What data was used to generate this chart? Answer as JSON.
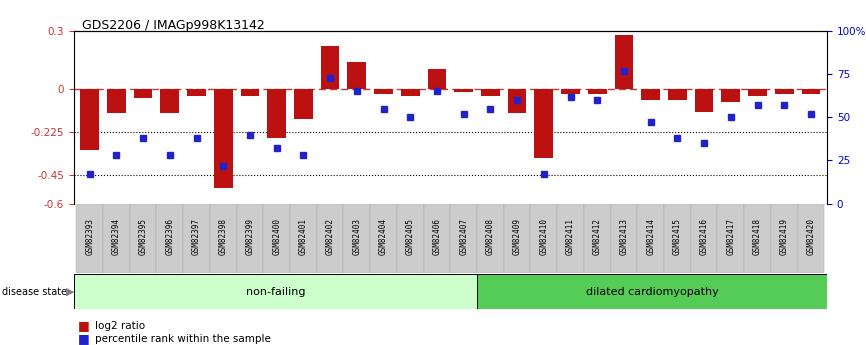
{
  "title": "GDS2206 / IMAGp998K13142",
  "samples": [
    "GSM82393",
    "GSM82394",
    "GSM82395",
    "GSM82396",
    "GSM82397",
    "GSM82398",
    "GSM82399",
    "GSM82400",
    "GSM82401",
    "GSM82402",
    "GSM82403",
    "GSM82404",
    "GSM82405",
    "GSM82406",
    "GSM82407",
    "GSM82408",
    "GSM82409",
    "GSM82410",
    "GSM82411",
    "GSM82412",
    "GSM82413",
    "GSM82414",
    "GSM82415",
    "GSM82416",
    "GSM82417",
    "GSM82418",
    "GSM82419",
    "GSM82420"
  ],
  "log2_ratio": [
    -0.32,
    -0.13,
    -0.05,
    -0.13,
    -0.04,
    -0.52,
    -0.04,
    -0.26,
    -0.16,
    0.22,
    0.14,
    -0.03,
    -0.04,
    0.1,
    -0.02,
    -0.04,
    -0.13,
    -0.36,
    -0.03,
    -0.03,
    0.28,
    -0.06,
    -0.06,
    -0.12,
    -0.07,
    -0.04,
    -0.03,
    -0.03
  ],
  "percentile": [
    17,
    28,
    38,
    28,
    38,
    22,
    40,
    32,
    28,
    73,
    65,
    55,
    50,
    65,
    52,
    55,
    60,
    17,
    62,
    60,
    77,
    47,
    38,
    35,
    50,
    57,
    57,
    52
  ],
  "nonfailing_count": 15,
  "bar_color": "#bb1111",
  "dot_color": "#2222cc",
  "zero_line_color": "#cc3333",
  "dotted_line_color": "#000000",
  "nonfailing_color": "#ccffcc",
  "cardiomyopathy_color": "#55cc55",
  "label_bg_color": "#cccccc",
  "ylim_left": [
    -0.6,
    0.3
  ],
  "ylim_right": [
    0,
    100
  ],
  "yticks_left": [
    -0.6,
    -0.45,
    -0.225,
    0.0,
    0.3
  ],
  "ytick_labels_left": [
    "-0.6",
    "-0.45",
    "-0.225",
    "0",
    "0.3"
  ],
  "yticks_right": [
    0,
    25,
    50,
    75,
    100
  ],
  "ytick_labels_right": [
    "0",
    "25",
    "50",
    "75",
    "100%"
  ]
}
